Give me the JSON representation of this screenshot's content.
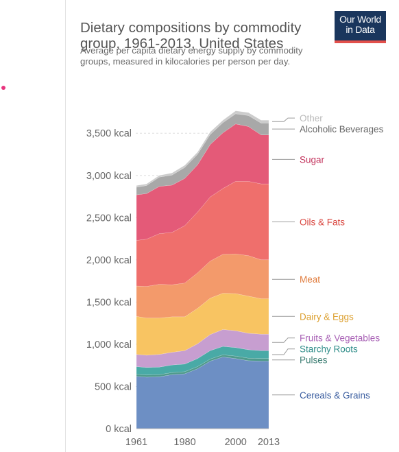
{
  "logo": {
    "line1": "Our World",
    "line2": "in Data",
    "bg": "#1a365d",
    "accent": "#e3504b"
  },
  "sidebar": {
    "marker_color": "#e8347e"
  },
  "chart_data": {
    "type": "area",
    "stacked": true,
    "title": "Dietary compositions by commodity group, 1961-2013, United States",
    "subtitle": "Average per capita dietary energy supply by commodity groups, measured in kilocalories per person per day.",
    "x_ticks": [
      1961,
      1980,
      2000,
      2013
    ],
    "y_ticks": [
      0,
      500,
      1000,
      1500,
      2000,
      2500,
      3000,
      3500
    ],
    "y_unit": " kcal",
    "ylim": [
      0,
      3900
    ],
    "xlim": [
      1961,
      2013
    ],
    "grid": true,
    "legend": "right",
    "years": [
      1961,
      1965,
      1970,
      1975,
      1980,
      1985,
      1990,
      1995,
      2000,
      2005,
      2010,
      2013
    ],
    "series": [
      {
        "name": "Cereals & Grains",
        "color": "#6d8fc4",
        "label_color": "#3b5ea0",
        "values": [
          620,
          610,
          615,
          640,
          650,
          710,
          800,
          850,
          830,
          805,
          800,
          800
        ]
      },
      {
        "name": "Pulses",
        "color": "#4f9a8c",
        "label_color": "#3d7e73",
        "values": [
          25,
          25,
          25,
          25,
          25,
          25,
          25,
          25,
          30,
          30,
          30,
          30
        ]
      },
      {
        "name": "Starchy Roots",
        "color": "#49aaa6",
        "label_color": "#2f8d89",
        "values": [
          90,
          90,
          90,
          90,
          90,
          95,
          100,
          100,
          100,
          100,
          95,
          95
        ]
      },
      {
        "name": "Fruits & Vegetables",
        "color": "#c79ed0",
        "label_color": "#a861b5",
        "values": [
          145,
          145,
          150,
          150,
          160,
          175,
          190,
          200,
          200,
          195,
          195,
          195
        ]
      },
      {
        "name": "Dairy & Eggs",
        "color": "#f8c462",
        "label_color": "#dca030",
        "values": [
          450,
          440,
          430,
          420,
          400,
          420,
          430,
          430,
          440,
          440,
          420,
          420
        ]
      },
      {
        "name": "Meat",
        "color": "#f39a6b",
        "label_color": "#e07a3a",
        "values": [
          360,
          375,
          400,
          380,
          400,
          420,
          440,
          460,
          470,
          480,
          460,
          460
        ]
      },
      {
        "name": "Oils & Fats",
        "color": "#ef6f6c",
        "label_color": "#d9463f",
        "values": [
          540,
          560,
          600,
          620,
          680,
          720,
          760,
          780,
          860,
          880,
          900,
          900
        ]
      },
      {
        "name": "Sugar",
        "color": "#e45a78",
        "label_color": "#c2305a",
        "values": [
          540,
          540,
          560,
          560,
          560,
          560,
          620,
          660,
          680,
          650,
          580,
          580
        ]
      },
      {
        "name": "Alcoholic Beverages",
        "color": "#a8a8a8",
        "label_color": "#666666",
        "values": [
          90,
          95,
          110,
          120,
          130,
          125,
          120,
          120,
          120,
          130,
          140,
          140
        ]
      },
      {
        "name": "Other",
        "color": "#cccccc",
        "label_color": "#bbbbbb",
        "values": [
          20,
          20,
          20,
          25,
          25,
          25,
          30,
          30,
          35,
          35,
          35,
          35
        ]
      }
    ]
  }
}
